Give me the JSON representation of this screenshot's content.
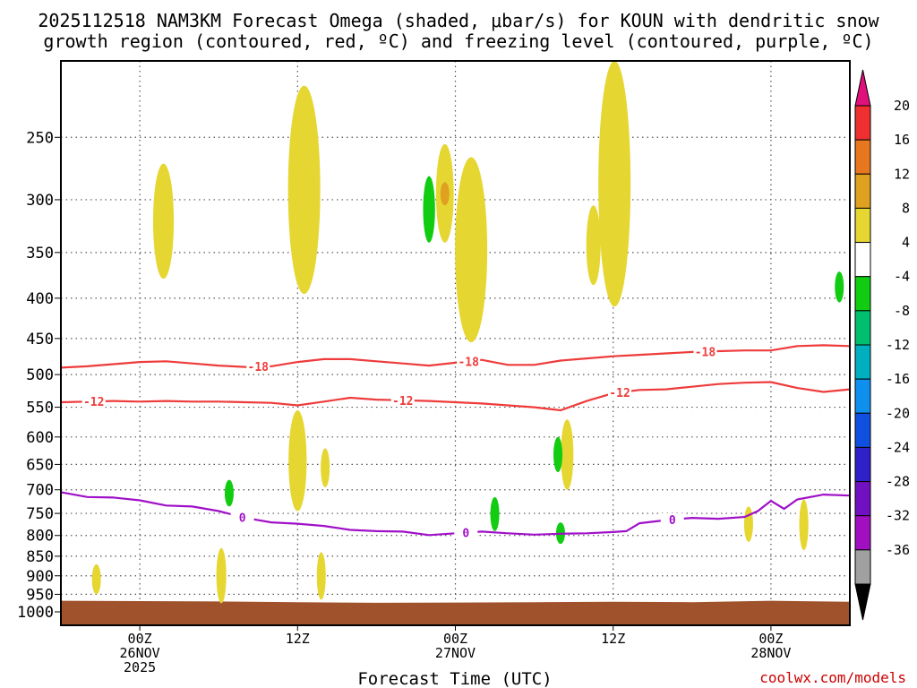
{
  "title": {
    "line1": "2025112518 NAM3KM Forecast Omega (shaded, μbar/s) for KOUN with dendritic snow",
    "line2": "growth region (contoured, red, ºC) and freezing level (contoured, purple, ºC)"
  },
  "credit": "coolwx.com/models",
  "colors": {
    "positive_4_8": "#e6d632",
    "positive_8_12": "#e0a020",
    "neg_4_8": "#11cc11",
    "dendritic": "#ee3b3b",
    "freezing": "#a010c8",
    "ground": "#a0522d"
  },
  "chart_data": {
    "type": "heatmap",
    "title": "2025112518 NAM3KM Forecast Omega (shaded, μbar/s) for KOUN with dendritic snow growth region (contoured, red, ºC) and freezing level (contoured, purple, ºC)",
    "xlabel": "Forecast Time (UTC)",
    "ylabel": "",
    "x_units": "hours since 2025-11-25 18Z",
    "xlim": [
      0,
      60
    ],
    "ylim_hpa": [
      1040,
      200
    ],
    "x_ticks": [
      {
        "hour": 6,
        "line1": "00Z",
        "line2": "26NOV",
        "line3": "2025"
      },
      {
        "hour": 18,
        "line1": "12Z",
        "line2": "",
        "line3": ""
      },
      {
        "hour": 30,
        "line1": "00Z",
        "line2": "27NOV",
        "line3": ""
      },
      {
        "hour": 42,
        "line1": "12Z",
        "line2": "",
        "line3": ""
      },
      {
        "hour": 54,
        "line1": "00Z",
        "line2": "28NOV",
        "line3": ""
      }
    ],
    "y_ticks": [
      250,
      300,
      350,
      400,
      450,
      500,
      550,
      600,
      650,
      700,
      750,
      800,
      850,
      900,
      950,
      1000
    ],
    "colorbar": {
      "labels": [
        "20",
        "16",
        "12",
        "8",
        "4",
        "-4",
        "-8",
        "-12",
        "-16",
        "-20",
        "-24",
        "-28",
        "-32",
        "-36"
      ],
      "bands": [
        {
          "color": "#ee3030"
        },
        {
          "color": "#e87820"
        },
        {
          "color": "#e0a020"
        },
        {
          "color": "#e6d632"
        },
        {
          "color": "#ffffff"
        },
        {
          "color": "#11cc11"
        },
        {
          "color": "#00c070"
        },
        {
          "color": "#00b0c0"
        },
        {
          "color": "#1090ee"
        },
        {
          "color": "#1050e0"
        },
        {
          "color": "#3020c8"
        },
        {
          "color": "#7010c0"
        },
        {
          "color": "#a010c0"
        },
        {
          "color": "#a0a0a0"
        }
      ],
      "top_color": "#e0117a",
      "bottom_color": "#000000"
    },
    "contours": [
      {
        "name": "minus-18",
        "label": "-18",
        "color": "#ee3b3b",
        "points": [
          [
            0,
            490
          ],
          [
            2,
            488
          ],
          [
            4,
            485
          ],
          [
            6,
            482
          ],
          [
            8,
            481
          ],
          [
            10,
            484
          ],
          [
            12,
            487
          ],
          [
            14,
            489
          ],
          [
            16,
            488
          ],
          [
            18,
            482
          ],
          [
            20,
            478
          ],
          [
            22,
            478
          ],
          [
            24,
            481
          ],
          [
            26,
            484
          ],
          [
            28,
            487
          ],
          [
            30,
            483
          ],
          [
            32,
            479
          ],
          [
            34,
            486
          ],
          [
            36,
            486
          ],
          [
            38,
            480
          ],
          [
            40,
            477
          ],
          [
            42,
            474
          ],
          [
            44,
            472
          ],
          [
            46,
            470
          ],
          [
            48,
            468
          ],
          [
            50,
            467
          ],
          [
            52,
            466
          ],
          [
            54,
            466
          ],
          [
            56,
            460
          ],
          [
            58,
            459
          ],
          [
            60,
            460
          ]
        ],
        "label_hours": [
          15,
          31,
          49
        ]
      },
      {
        "name": "minus-12",
        "label": "-12",
        "color": "#ee3b3b",
        "points": [
          [
            0,
            542
          ],
          [
            2,
            541
          ],
          [
            4,
            540
          ],
          [
            6,
            541
          ],
          [
            8,
            540
          ],
          [
            10,
            541
          ],
          [
            12,
            541
          ],
          [
            14,
            542
          ],
          [
            16,
            543
          ],
          [
            18,
            547
          ],
          [
            20,
            541
          ],
          [
            22,
            535
          ],
          [
            24,
            538
          ],
          [
            26,
            539
          ],
          [
            28,
            540
          ],
          [
            30,
            542
          ],
          [
            32,
            544
          ],
          [
            34,
            547
          ],
          [
            36,
            550
          ],
          [
            38,
            555
          ],
          [
            40,
            540
          ],
          [
            42,
            528
          ],
          [
            44,
            523
          ],
          [
            46,
            522
          ],
          [
            48,
            518
          ],
          [
            50,
            514
          ],
          [
            52,
            512
          ],
          [
            54,
            511
          ],
          [
            56,
            520
          ],
          [
            58,
            526
          ],
          [
            60,
            522
          ]
        ],
        "label_hours": [
          2.5,
          26,
          42.5
        ]
      },
      {
        "name": "freezing-0",
        "label": "0",
        "color": "#a010c8",
        "points": [
          [
            0,
            705
          ],
          [
            2,
            715
          ],
          [
            4,
            716
          ],
          [
            6,
            722
          ],
          [
            8,
            733
          ],
          [
            10,
            735
          ],
          [
            12,
            745
          ],
          [
            14,
            760
          ],
          [
            16,
            770
          ],
          [
            18,
            773
          ],
          [
            20,
            778
          ],
          [
            22,
            787
          ],
          [
            24,
            790
          ],
          [
            26,
            791
          ],
          [
            28,
            799
          ],
          [
            30,
            795
          ],
          [
            32,
            791
          ],
          [
            34,
            795
          ],
          [
            36,
            798
          ],
          [
            38,
            796
          ],
          [
            40,
            795
          ],
          [
            42,
            792
          ],
          [
            43,
            790
          ],
          [
            44,
            772
          ],
          [
            46,
            765
          ],
          [
            48,
            760
          ],
          [
            50,
            762
          ],
          [
            52,
            758
          ],
          [
            53,
            745
          ],
          [
            54,
            723
          ],
          [
            55,
            740
          ],
          [
            56,
            720
          ],
          [
            58,
            710
          ],
          [
            60,
            712
          ]
        ],
        "label_hours": [
          13.8,
          30.8,
          46.5
        ]
      }
    ],
    "shaded_regions": [
      {
        "name": "omega-plus-1",
        "band": "4 to 8",
        "hour": 7.8,
        "p_min": 270,
        "p_max": 378
      },
      {
        "name": "omega-plus-2",
        "band": "4 to 8",
        "hour": 18.5,
        "p_min": 215,
        "p_max": 395
      },
      {
        "name": "omega-plus-3",
        "band": "4 to 8",
        "hour": 29.2,
        "p_min": 255,
        "p_max": 340
      },
      {
        "name": "omega-plus-3-core",
        "band": "8 to 12",
        "hour": 29.2,
        "p_min": 285,
        "p_max": 305
      },
      {
        "name": "omega-plus-4",
        "band": "4 to 8",
        "hour": 31.2,
        "p_min": 265,
        "p_max": 455
      },
      {
        "name": "omega-plus-5",
        "band": "4 to 8",
        "hour": 40.5,
        "p_min": 305,
        "p_max": 385
      },
      {
        "name": "omega-plus-6",
        "band": "4 to 8",
        "hour": 42.1,
        "p_min": 200,
        "p_max": 410
      },
      {
        "name": "omega-plus-7",
        "band": "4 to 8",
        "hour": 18.0,
        "p_min": 555,
        "p_max": 745
      },
      {
        "name": "omega-plus-8",
        "band": "4 to 8",
        "hour": 20.1,
        "p_min": 620,
        "p_max": 695
      },
      {
        "name": "omega-plus-9",
        "band": "4 to 8",
        "hour": 38.5,
        "p_min": 570,
        "p_max": 700
      },
      {
        "name": "omega-plus-10",
        "band": "4 to 8",
        "hour": 12.2,
        "p_min": 830,
        "p_max": 975
      },
      {
        "name": "omega-plus-11",
        "band": "4 to 8",
        "hour": 2.7,
        "p_min": 870,
        "p_max": 950
      },
      {
        "name": "omega-plus-12",
        "band": "4 to 8",
        "hour": 19.8,
        "p_min": 840,
        "p_max": 965
      },
      {
        "name": "omega-plus-13",
        "band": "4 to 8",
        "hour": 56.5,
        "p_min": 720,
        "p_max": 835
      },
      {
        "name": "omega-plus-14",
        "band": "4 to 8",
        "hour": 52.3,
        "p_min": 735,
        "p_max": 815
      },
      {
        "name": "omega-minus-1",
        "band": "-4 to -8",
        "hour": 12.8,
        "p_min": 680,
        "p_max": 735
      },
      {
        "name": "omega-minus-2",
        "band": "-4 to -8",
        "hour": 28.0,
        "p_min": 280,
        "p_max": 340
      },
      {
        "name": "omega-minus-3",
        "band": "-4 to -8",
        "hour": 33.0,
        "p_min": 715,
        "p_max": 790
      },
      {
        "name": "omega-minus-4",
        "band": "-4 to -8",
        "hour": 37.8,
        "p_min": 600,
        "p_max": 665
      },
      {
        "name": "omega-minus-5",
        "band": "-4 to -8",
        "hour": 59.2,
        "p_min": 370,
        "p_max": 405
      },
      {
        "name": "omega-minus-6",
        "band": "-4 to -8",
        "hour": 38.0,
        "p_min": 770,
        "p_max": 820
      }
    ]
  }
}
